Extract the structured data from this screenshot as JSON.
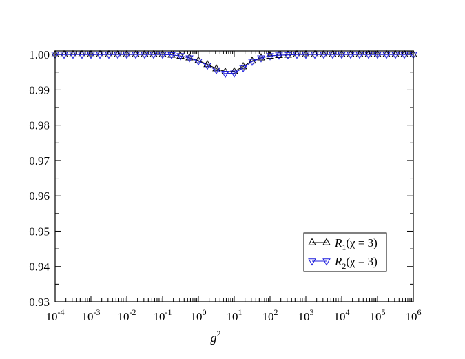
{
  "chart_data": {
    "type": "line",
    "xlabel": "g",
    "xlabel_sup": "2",
    "ylabel": "",
    "xscale": "log",
    "xlim": [
      0.0001,
      1000000
    ],
    "ylim": [
      0.93,
      1.001
    ],
    "y_ticks": [
      "0.93",
      "0.94",
      "0.95",
      "0.96",
      "0.97",
      "0.98",
      "0.99",
      "1.00"
    ],
    "x_ticks": [
      {
        "base": "10",
        "exp": "-4"
      },
      {
        "base": "10",
        "exp": "-3"
      },
      {
        "base": "10",
        "exp": "-2"
      },
      {
        "base": "10",
        "exp": "-1"
      },
      {
        "base": "10",
        "exp": "0"
      },
      {
        "base": "10",
        "exp": "1"
      },
      {
        "base": "10",
        "exp": "2"
      },
      {
        "base": "10",
        "exp": "3"
      },
      {
        "base": "10",
        "exp": "4"
      },
      {
        "base": "10",
        "exp": "5"
      },
      {
        "base": "10",
        "exp": "6"
      }
    ],
    "legend_position": "lower-right",
    "series": [
      {
        "name": "R1(χ = 3)",
        "legend_symbol": "R",
        "legend_sub": "1",
        "legend_rest": "(χ = 3)",
        "color": "#000000",
        "marker": "triangle-up",
        "x": [
          0.0001,
          0.000178,
          0.000316,
          0.000562,
          0.001,
          0.00178,
          0.00316,
          0.00562,
          0.01,
          0.0178,
          0.0316,
          0.0562,
          0.1,
          0.178,
          0.316,
          0.562,
          1,
          1.78,
          3.16,
          5.62,
          10,
          17.8,
          31.6,
          56.2,
          100,
          178,
          316,
          562,
          1000,
          1780,
          3160,
          5620,
          10000,
          17800,
          31600,
          56200,
          100000,
          178000,
          316000,
          562000,
          1000000
        ],
        "y": [
          1.0,
          1.0,
          1.0,
          1.0,
          1.0,
          1.0,
          1.0,
          1.0,
          1.0,
          1.0,
          1.0,
          1.0,
          1.0,
          0.9999,
          0.9996,
          0.9991,
          0.9983,
          0.9972,
          0.996,
          0.9951,
          0.9952,
          0.9966,
          0.9982,
          0.9991,
          0.9996,
          0.9998,
          0.9999,
          1.0,
          1.0,
          1.0,
          1.0,
          1.0,
          1.0,
          1.0,
          1.0,
          1.0,
          1.0,
          1.0,
          1.0,
          1.0,
          1.0
        ]
      },
      {
        "name": "R2(χ = 3)",
        "legend_symbol": "R",
        "legend_sub": "2",
        "legend_rest": "(χ = 3)",
        "color": "#1f1fdd",
        "marker": "triangle-down",
        "x": [
          0.0001,
          0.000178,
          0.000316,
          0.000562,
          0.001,
          0.00178,
          0.00316,
          0.00562,
          0.01,
          0.0178,
          0.0316,
          0.0562,
          0.1,
          0.178,
          0.316,
          0.562,
          1,
          1.78,
          3.16,
          5.62,
          10,
          17.8,
          31.6,
          56.2,
          100,
          178,
          316,
          562,
          1000,
          1780,
          3160,
          5620,
          10000,
          17800,
          31600,
          56200,
          100000,
          178000,
          316000,
          562000,
          1000000
        ],
        "y": [
          1.0,
          1.0,
          1.0,
          1.0,
          1.0,
          1.0,
          1.0,
          1.0,
          1.0,
          1.0,
          1.0,
          1.0,
          1.0,
          0.9999,
          0.9996,
          0.999,
          0.9981,
          0.9969,
          0.9956,
          0.9946,
          0.9947,
          0.9962,
          0.998,
          0.999,
          0.9996,
          0.9998,
          0.9999,
          1.0,
          1.0,
          1.0,
          1.0,
          1.0,
          1.0,
          1.0,
          1.0,
          1.0,
          1.0,
          1.0,
          1.0,
          1.0,
          1.0
        ]
      }
    ]
  }
}
